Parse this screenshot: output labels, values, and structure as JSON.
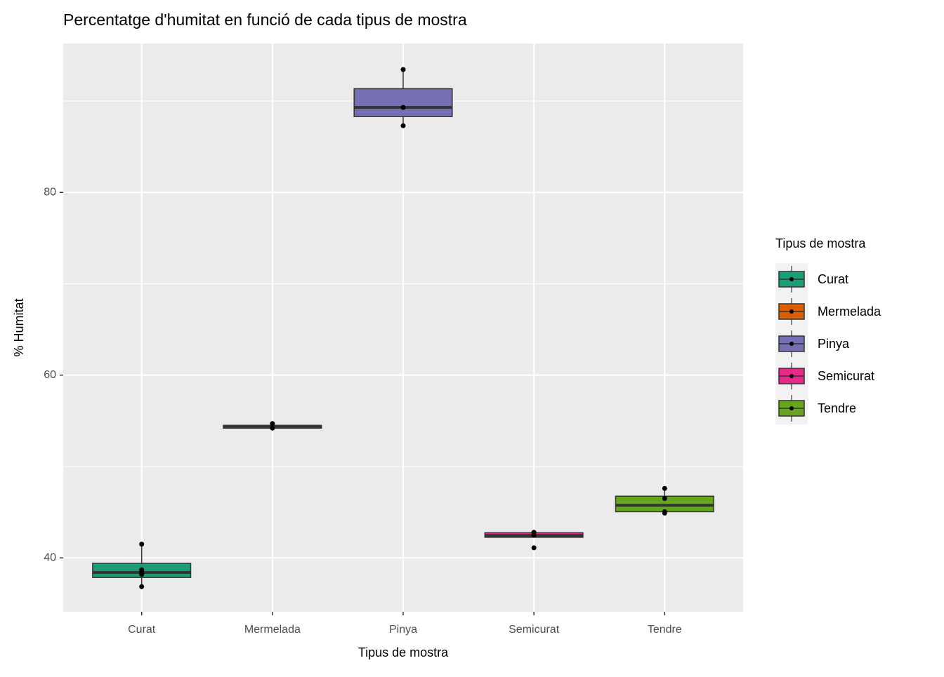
{
  "chart_data": {
    "type": "boxplot",
    "title": "Percentatge d'humitat en funció de cada tipus de mostra",
    "x_label": "Tipus de mostra",
    "y_label": "% Humitat",
    "legend_title": "Tipus de mostra",
    "categories": [
      "Curat",
      "Mermelada",
      "Pinya",
      "Semicurat",
      "Tendre"
    ],
    "colors": [
      "#1b9e77",
      "#d95f02",
      "#7570b3",
      "#e7298a",
      "#66a61e"
    ],
    "boxes": [
      {
        "min": 36.85,
        "q1": 37.85,
        "median": 38.4,
        "q3": 39.4,
        "max": 41.5,
        "points": [
          41.5,
          38.7,
          38.4,
          38.2,
          36.85
        ]
      },
      {
        "min": 54.2,
        "q1": 54.2,
        "median": 54.4,
        "q3": 54.5,
        "max": 54.7,
        "points": [
          54.7,
          54.2
        ]
      },
      {
        "min": 87.3,
        "q1": 88.3,
        "median": 89.3,
        "q3": 91.35,
        "max": 93.45,
        "points": [
          93.45,
          89.3,
          87.3
        ]
      },
      {
        "min": 42.2,
        "q1": 42.25,
        "median": 42.45,
        "q3": 42.75,
        "max": 42.8,
        "points": [
          42.8,
          42.5,
          41.1
        ]
      },
      {
        "min": 44.9,
        "q1": 45.05,
        "median": 45.75,
        "q3": 46.75,
        "max": 47.6,
        "points": [
          47.6,
          46.5,
          45.05,
          44.9
        ]
      }
    ],
    "ylim": [
      34.1,
      96.3
    ],
    "yticks": [
      40,
      60,
      80
    ],
    "minor_yticks": [
      50,
      70,
      90
    ],
    "grid": true,
    "legend": "right"
  }
}
